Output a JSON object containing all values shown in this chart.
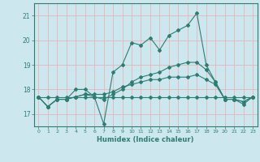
{
  "title": "",
  "xlabel": "Humidex (Indice chaleur)",
  "ylabel": "",
  "x_ticks": [
    0,
    1,
    2,
    3,
    4,
    5,
    6,
    7,
    8,
    9,
    10,
    11,
    12,
    13,
    14,
    15,
    16,
    17,
    18,
    19,
    20,
    21,
    22,
    23
  ],
  "xlim": [
    -0.5,
    23.5
  ],
  "ylim": [
    16.5,
    21.5
  ],
  "yticks": [
    17,
    18,
    19,
    20,
    21
  ],
  "bg_color": "#cce8ee",
  "grid_color": "#e8b4b8",
  "line_color": "#2e7d72",
  "series": [
    [
      17.7,
      17.3,
      17.6,
      17.6,
      18.0,
      18.0,
      17.7,
      16.6,
      18.7,
      19.0,
      19.9,
      19.8,
      20.1,
      19.6,
      20.2,
      20.4,
      20.6,
      21.1,
      19.0,
      18.3,
      17.6,
      17.6,
      17.4,
      17.7
    ],
    [
      17.7,
      17.3,
      17.6,
      17.6,
      17.7,
      17.8,
      17.7,
      17.6,
      17.8,
      18.0,
      18.3,
      18.5,
      18.6,
      18.7,
      18.9,
      19.0,
      19.1,
      19.1,
      18.8,
      18.3,
      17.6,
      17.6,
      17.5,
      17.7
    ],
    [
      17.7,
      17.3,
      17.6,
      17.6,
      17.7,
      17.8,
      17.8,
      17.8,
      17.9,
      18.1,
      18.2,
      18.3,
      18.4,
      18.4,
      18.5,
      18.5,
      18.5,
      18.6,
      18.4,
      18.2,
      17.6,
      17.6,
      17.5,
      17.7
    ],
    [
      17.7,
      17.7,
      17.7,
      17.7,
      17.7,
      17.7,
      17.7,
      17.7,
      17.7,
      17.7,
      17.7,
      17.7,
      17.7,
      17.7,
      17.7,
      17.7,
      17.7,
      17.7,
      17.7,
      17.7,
      17.7,
      17.7,
      17.7,
      17.7
    ]
  ]
}
